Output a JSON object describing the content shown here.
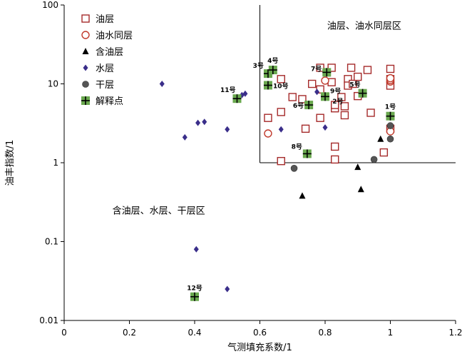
{
  "chart_data": {
    "type": "scatter",
    "x_scale": "linear",
    "y_scale": "log",
    "xlabel": "气测填充系数/1",
    "ylabel": "油丰指数/1",
    "xlim": [
      0,
      1.2
    ],
    "ylim": [
      0.01,
      100
    ],
    "x_ticks": [
      0,
      0.2,
      0.4,
      0.6,
      0.8,
      1,
      1.2
    ],
    "x_tick_labels": [
      "0",
      "0.2",
      "0.4",
      "0.6",
      "0.8",
      "1",
      "1.2"
    ],
    "y_ticks": [
      0.01,
      0.1,
      1,
      10,
      100
    ],
    "y_tick_labels": [
      "0.01",
      "0.1",
      "1",
      "10",
      "100"
    ],
    "grid": false,
    "legend_position": "top-left",
    "colors": {
      "oil": "#a52a2a",
      "oil_water": "#c0392b",
      "oil_bearing": "#000000",
      "water": "#3a2e8a",
      "dry": "#555555",
      "interp_fill": "#6aa84f",
      "interp_cross": "#000000",
      "axis": "#000000"
    },
    "series": [
      {
        "name": "油层",
        "marker": "open-square",
        "points": [
          [
            0.625,
            3.7
          ],
          [
            0.665,
            4.4
          ],
          [
            0.665,
            11.5
          ],
          [
            0.665,
            1.05
          ],
          [
            0.7,
            6.8
          ],
          [
            0.73,
            6.4
          ],
          [
            0.74,
            2.7
          ],
          [
            0.76,
            10.0
          ],
          [
            0.785,
            16.0
          ],
          [
            0.785,
            3.7
          ],
          [
            0.785,
            8.5
          ],
          [
            0.82,
            16.0
          ],
          [
            0.82,
            10.5
          ],
          [
            0.83,
            4.9
          ],
          [
            0.83,
            5.4
          ],
          [
            0.83,
            1.6
          ],
          [
            0.83,
            1.1
          ],
          [
            0.85,
            6.8
          ],
          [
            0.86,
            4.0
          ],
          [
            0.86,
            5.2
          ],
          [
            0.87,
            11.5
          ],
          [
            0.87,
            9.5
          ],
          [
            0.88,
            16.0
          ],
          [
            0.885,
            10.0
          ],
          [
            0.9,
            12.3
          ],
          [
            0.9,
            7.0
          ],
          [
            0.93,
            15.0
          ],
          [
            0.94,
            4.3
          ],
          [
            0.98,
            1.35
          ],
          [
            1.0,
            15.5
          ],
          [
            1.0,
            11.5
          ],
          [
            1.0,
            9.5
          ],
          [
            1.0,
            2.7
          ]
        ]
      },
      {
        "name": "油水同层",
        "marker": "open-circle",
        "points": [
          [
            0.625,
            2.35
          ],
          [
            0.8,
            11.0
          ],
          [
            1.0,
            10.7
          ],
          [
            1.0,
            11.2
          ],
          [
            1.0,
            11.8
          ],
          [
            1.0,
            2.5
          ]
        ]
      },
      {
        "name": "含油层",
        "marker": "filled-triangle",
        "points": [
          [
            0.73,
            0.38
          ],
          [
            0.9,
            0.88
          ],
          [
            0.91,
            0.46
          ],
          [
            0.97,
            2.0
          ]
        ]
      },
      {
        "name": "水层",
        "marker": "filled-diamond",
        "points": [
          [
            0.3,
            10.0
          ],
          [
            0.37,
            2.1
          ],
          [
            0.41,
            3.2
          ],
          [
            0.43,
            3.3
          ],
          [
            0.5,
            2.65
          ],
          [
            0.545,
            7.2
          ],
          [
            0.555,
            7.5
          ],
          [
            0.665,
            2.65
          ],
          [
            0.775,
            7.9
          ],
          [
            0.8,
            2.8
          ],
          [
            0.405,
            0.08
          ],
          [
            0.5,
            0.025
          ]
        ]
      },
      {
        "name": "干层",
        "marker": "filled-circle",
        "points": [
          [
            0.705,
            0.85
          ],
          [
            0.95,
            1.1
          ],
          [
            1.0,
            2.0
          ],
          [
            1.0,
            2.95
          ]
        ]
      },
      {
        "name": "解释点",
        "marker": "green-cross-square",
        "points": [
          [
            1.0,
            3.9
          ],
          [
            0.625,
            13.5
          ],
          [
            0.64,
            15.0
          ],
          [
            0.915,
            7.6
          ],
          [
            0.75,
            5.4
          ],
          [
            0.805,
            14.0
          ],
          [
            0.8,
            6.9
          ],
          [
            0.745,
            1.3
          ],
          [
            0.625,
            9.6
          ],
          [
            0.53,
            6.5
          ],
          [
            0.4,
            0.02
          ]
        ],
        "labels": [
          "1号",
          "3号",
          "4号",
          "5号",
          "6号",
          "7号",
          "9号",
          "8号",
          "10号",
          "11号",
          "12号"
        ]
      }
    ],
    "extra_annotations": [
      {
        "text": "2号",
        "x": 0.805,
        "y": 6.0
      }
    ],
    "region_labels": [
      {
        "text": "油层、油水同层区",
        "x": 0.92,
        "y": 55
      },
      {
        "text": "含油层、水层、干层区",
        "x": 0.29,
        "y": 0.25
      }
    ],
    "region_boundary": {
      "x_min": 0.6,
      "y_min": 1,
      "x_max": 1.2,
      "y_max": 100
    }
  }
}
